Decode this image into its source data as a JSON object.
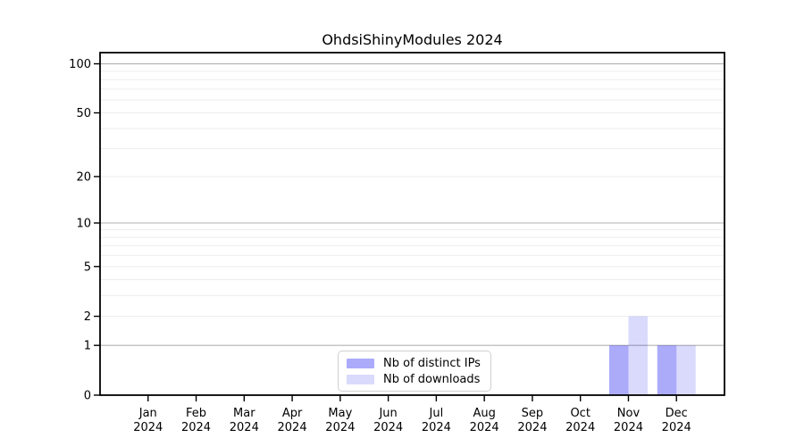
{
  "title": "OhdsiShinyModules 2024",
  "colors": {
    "ips_bar": "rgba(9,9,240,0.34)",
    "downloads_bar": "rgba(9,9,240,0.15)",
    "grid_major": "#b2b2b2",
    "grid_minor": "#ededed",
    "axis": "#000000",
    "legend_border": "#d0d0d0",
    "background": "#ffffff"
  },
  "legend": {
    "items": [
      {
        "label": "Nb of distinct IPs",
        "color": "rgba(9,9,240,0.34)"
      },
      {
        "label": "Nb of downloads",
        "color": "rgba(9,9,240,0.15)"
      }
    ]
  },
  "y_axis": {
    "tick_values": [
      0,
      1,
      2,
      5,
      10,
      20,
      50,
      100
    ],
    "tick_labels": [
      "0",
      "1",
      "2",
      "5",
      "10",
      "20",
      "50",
      "100"
    ],
    "major_grid_values": [
      1,
      10,
      100
    ],
    "minor_grid_values": [
      2,
      3,
      4,
      5,
      6,
      7,
      8,
      9,
      20,
      30,
      40,
      50,
      60,
      70,
      80,
      90
    ],
    "scale": "log1p"
  },
  "x_axis": {
    "ticks": [
      {
        "line1": "Jan",
        "line2": "2024"
      },
      {
        "line1": "Feb",
        "line2": "2024"
      },
      {
        "line1": "Mar",
        "line2": "2024"
      },
      {
        "line1": "Apr",
        "line2": "2024"
      },
      {
        "line1": "May",
        "line2": "2024"
      },
      {
        "line1": "Jun",
        "line2": "2024"
      },
      {
        "line1": "Jul",
        "line2": "2024"
      },
      {
        "line1": "Aug",
        "line2": "2024"
      },
      {
        "line1": "Sep",
        "line2": "2024"
      },
      {
        "line1": "Oct",
        "line2": "2024"
      },
      {
        "line1": "Nov",
        "line2": "2024"
      },
      {
        "line1": "Dec",
        "line2": "2024"
      }
    ]
  },
  "chart_data": {
    "type": "bar",
    "categories": [
      "Jan 2024",
      "Feb 2024",
      "Mar 2024",
      "Apr 2024",
      "May 2024",
      "Jun 2024",
      "Jul 2024",
      "Aug 2024",
      "Sep 2024",
      "Oct 2024",
      "Nov 2024",
      "Dec 2024"
    ],
    "series": [
      {
        "name": "Nb of distinct IPs",
        "values": [
          0,
          0,
          0,
          0,
          0,
          0,
          0,
          0,
          0,
          0,
          1,
          1
        ]
      },
      {
        "name": "Nb of downloads",
        "values": [
          0,
          0,
          0,
          0,
          0,
          0,
          0,
          0,
          0,
          0,
          2,
          1
        ]
      }
    ],
    "title": "OhdsiShinyModules 2024",
    "xlabel": "",
    "ylabel": "",
    "y_scale": "log1p",
    "ylim": [
      0,
      117
    ],
    "grid": true,
    "legend_position": "lower center"
  }
}
